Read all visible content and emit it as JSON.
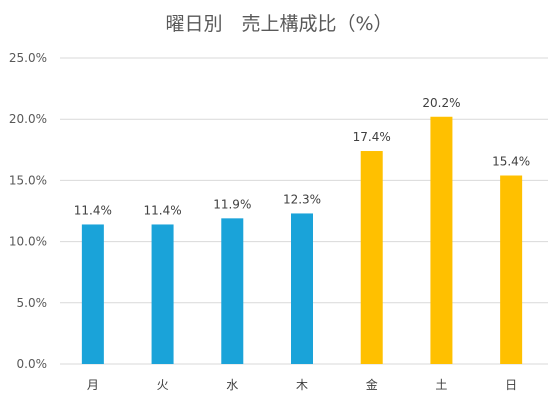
{
  "chart_data": {
    "type": "bar",
    "title": "曜日別　売上構成比（%）",
    "categories": [
      "月",
      "火",
      "水",
      "木",
      "金",
      "土",
      "日"
    ],
    "values": [
      11.4,
      11.4,
      11.9,
      12.3,
      17.4,
      20.2,
      15.4
    ],
    "value_labels": [
      "11.4%",
      "11.4%",
      "11.9%",
      "12.3%",
      "17.4%",
      "20.2%",
      "15.4%"
    ],
    "y_ticks": [
      "0.0%",
      "5.0%",
      "10.0%",
      "15.0%",
      "20.0%",
      "25.0%"
    ],
    "ylim": [
      0,
      25
    ],
    "grid": true,
    "legend": "none",
    "bar_colors": [
      "#1aa3d9",
      "#1aa3d9",
      "#1aa3d9",
      "#1aa3d9",
      "#ffc000",
      "#ffc000",
      "#ffc000"
    ]
  }
}
